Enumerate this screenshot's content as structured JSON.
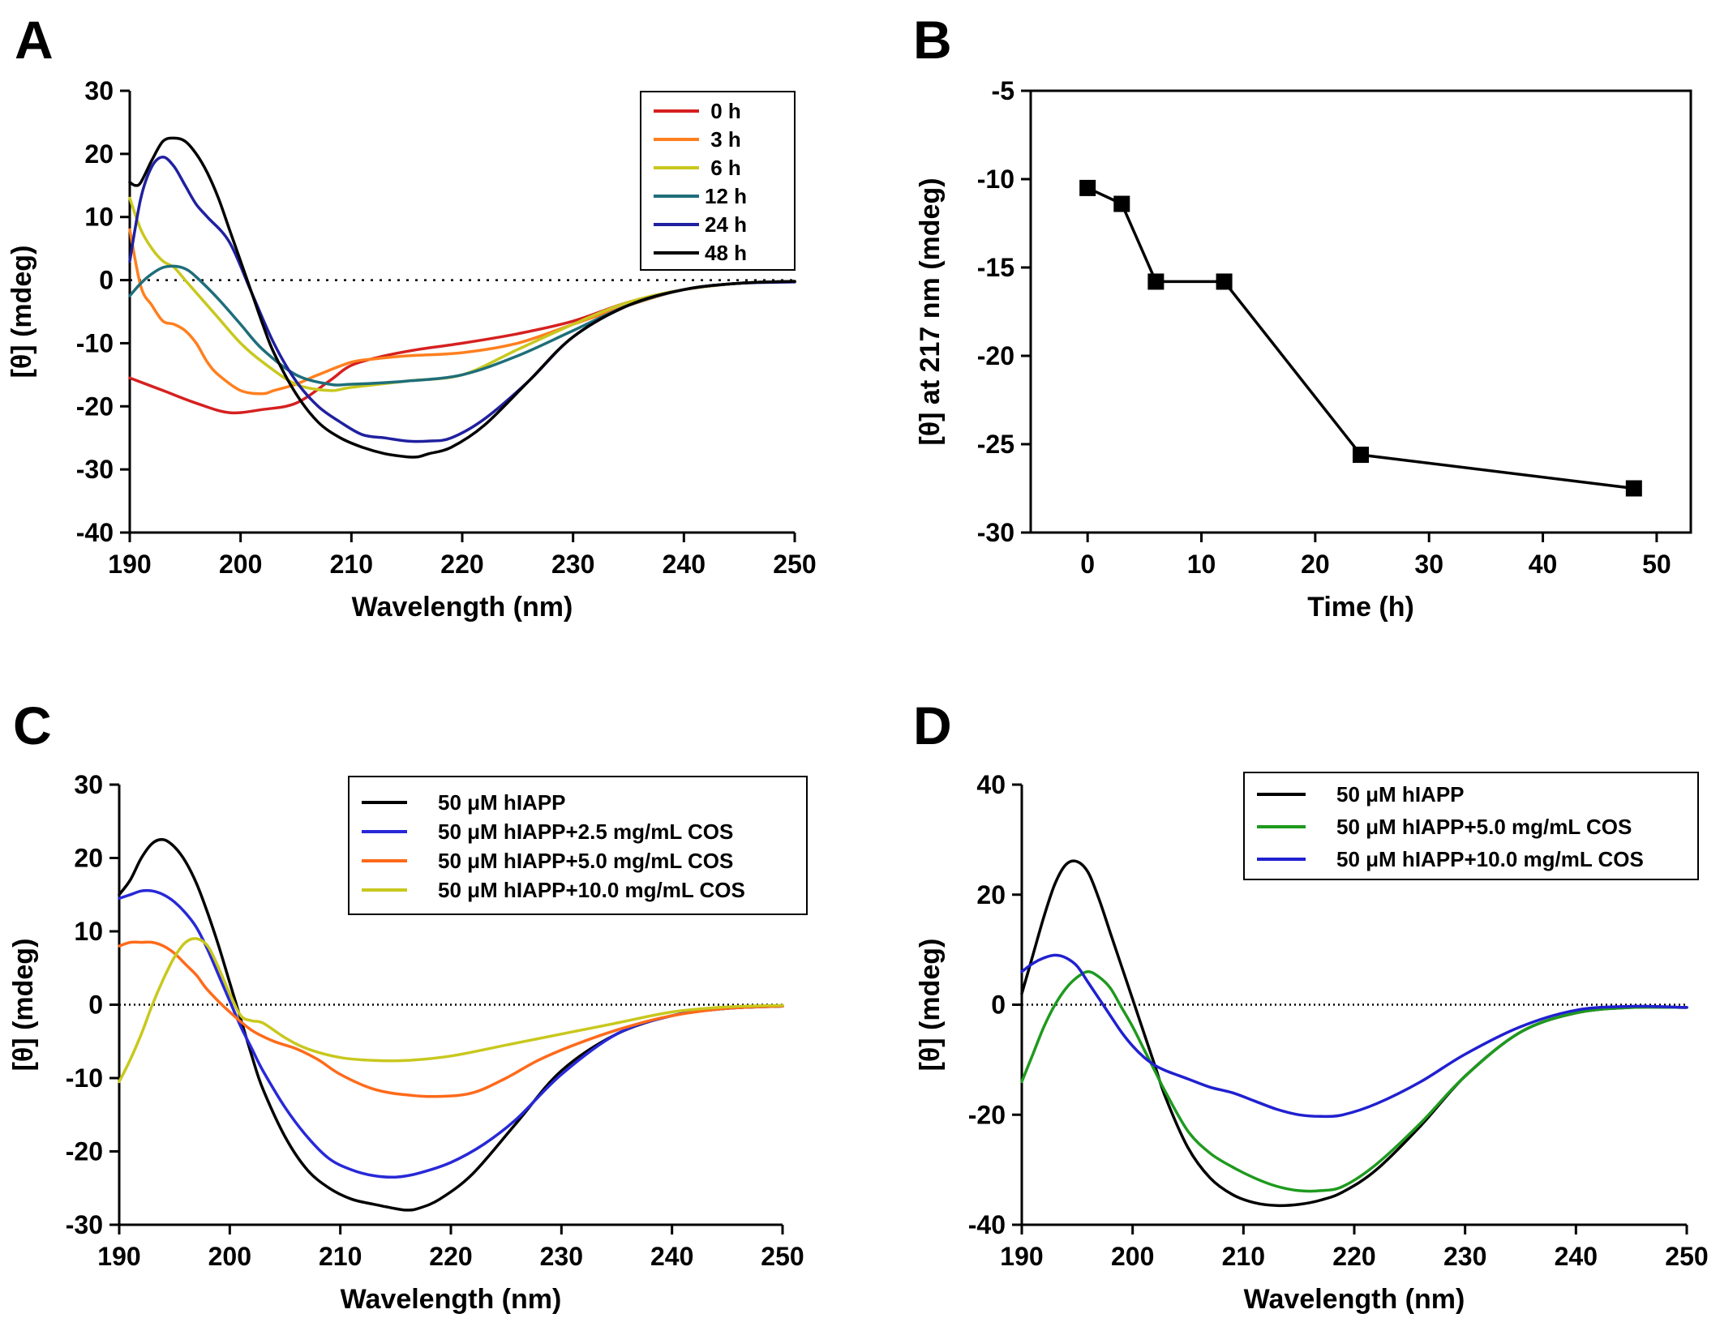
{
  "chart_data": [
    {
      "panel": "A",
      "type": "line",
      "xlabel": "Wavelength (nm)",
      "ylabel": "[θ] (mdeg)",
      "xlim": [
        190,
        250
      ],
      "ylim": [
        -40,
        30
      ],
      "xticks": [
        190,
        200,
        210,
        220,
        230,
        240,
        250
      ],
      "yticks": [
        -40,
        -30,
        -20,
        -10,
        0,
        10,
        20,
        30
      ],
      "zero_line": true,
      "legend_position": "top-right",
      "series": [
        {
          "name": "0 h",
          "color": "#d62020",
          "x": [
            190,
            193,
            196,
            199,
            202,
            205,
            208,
            210,
            213,
            216,
            220,
            225,
            230,
            235,
            240,
            245,
            250
          ],
          "y": [
            -15.5,
            -17.5,
            -19.5,
            -21,
            -20.5,
            -19.5,
            -16,
            -13.5,
            -12,
            -11,
            -10,
            -8.5,
            -6.5,
            -3.5,
            -1.5,
            -0.5,
            -0.2
          ]
        },
        {
          "name": "3 h",
          "color": "#ff7f1e",
          "x": [
            190,
            191,
            192,
            193,
            194,
            195,
            196,
            197,
            198,
            200,
            202,
            203,
            205,
            207,
            210,
            212,
            215,
            220,
            225,
            230,
            235,
            240,
            245,
            250
          ],
          "y": [
            8,
            -1,
            -4,
            -6.5,
            -7,
            -8,
            -10,
            -13,
            -15,
            -17.5,
            -18,
            -17.5,
            -16.5,
            -15,
            -13,
            -12.5,
            -12,
            -11.5,
            -10,
            -7,
            -4,
            -1.5,
            -0.5,
            -0.2
          ]
        },
        {
          "name": "6 h",
          "color": "#c8c81e",
          "x": [
            190,
            191,
            192,
            193,
            194,
            195,
            196,
            198,
            200,
            202,
            205,
            208,
            210,
            215,
            220,
            225,
            230,
            235,
            240,
            245,
            250
          ],
          "y": [
            13,
            8,
            5,
            3,
            2,
            0,
            -2,
            -6,
            -10,
            -13,
            -16.5,
            -17.5,
            -17,
            -16,
            -15,
            -11,
            -7,
            -3.5,
            -1.5,
            -0.5,
            -0.2
          ]
        },
        {
          "name": "12 h",
          "color": "#1e6e7a",
          "x": [
            190,
            191,
            192,
            193,
            194,
            195,
            196,
            198,
            200,
            202,
            205,
            208,
            210,
            215,
            220,
            225,
            230,
            235,
            240,
            245,
            250
          ],
          "y": [
            -2.5,
            -0.5,
            1,
            2,
            2.2,
            1.8,
            0.5,
            -3,
            -7,
            -11,
            -15,
            -16.5,
            -16.5,
            -16,
            -15,
            -12,
            -8,
            -4,
            -1.5,
            -0.5,
            -0.2
          ]
        },
        {
          "name": "24 h",
          "color": "#2020a0",
          "x": [
            190,
            191,
            192,
            193,
            194,
            195,
            196,
            197,
            199,
            201,
            203,
            205,
            207,
            209,
            211,
            213,
            215,
            217,
            219,
            222,
            226,
            230,
            235,
            240,
            245,
            250
          ],
          "y": [
            3,
            13,
            18,
            19.5,
            18,
            15,
            12,
            10,
            6,
            -2,
            -10,
            -16,
            -20,
            -22.5,
            -24.5,
            -25,
            -25.5,
            -25.5,
            -25,
            -22,
            -16,
            -9,
            -4,
            -1.5,
            -0.5,
            -0.3
          ]
        },
        {
          "name": "48 h",
          "color": "#000000",
          "x": [
            190,
            190.5,
            191,
            192,
            193,
            194,
            195,
            196,
            197,
            198,
            199,
            200,
            201,
            202,
            203,
            205,
            207,
            209,
            211,
            213,
            215,
            216,
            217,
            219,
            222,
            226,
            230,
            235,
            240,
            245,
            250
          ],
          "y": [
            15.5,
            15,
            15.5,
            19,
            22,
            22.5,
            22,
            20,
            17,
            13,
            8,
            3,
            -2,
            -7,
            -11.5,
            -18,
            -22.5,
            -25,
            -26.5,
            -27.5,
            -28,
            -28,
            -27.5,
            -26.5,
            -23,
            -16,
            -9,
            -4,
            -1.5,
            -0.5,
            -0.2
          ]
        }
      ]
    },
    {
      "panel": "B",
      "type": "line",
      "xlabel": "Time (h)",
      "ylabel": "[θ] at 217 nm (mdeg)",
      "xlim": [
        -5,
        53
      ],
      "ylim": [
        -30,
        -5
      ],
      "xticks": [
        0,
        10,
        20,
        30,
        40,
        50
      ],
      "yticks": [
        -30,
        -25,
        -20,
        -15,
        -10,
        -5
      ],
      "marker": "square",
      "series": [
        {
          "name": "",
          "color": "#000000",
          "x": [
            0,
            3,
            6,
            12,
            24,
            48
          ],
          "y": [
            -10.5,
            -11.4,
            -15.8,
            -15.8,
            -25.6,
            -27.5
          ]
        }
      ]
    },
    {
      "panel": "C",
      "type": "line",
      "xlabel": "Wavelength (nm)",
      "ylabel": "[θ] (mdeg)",
      "xlim": [
        190,
        250
      ],
      "ylim": [
        -30,
        30
      ],
      "xticks": [
        190,
        200,
        210,
        220,
        230,
        240,
        250
      ],
      "yticks": [
        -30,
        -20,
        -10,
        0,
        10,
        20,
        30
      ],
      "zero_line": true,
      "legend_position": "top-right",
      "series": [
        {
          "name": "50 μM hIAPP",
          "color": "#000000",
          "x": [
            190,
            191,
            192,
            193,
            194,
            195,
            196,
            197,
            198,
            199,
            200,
            201,
            202,
            203,
            205,
            207,
            209,
            211,
            213,
            215,
            216,
            217,
            219,
            222,
            226,
            230,
            235,
            240,
            245,
            250
          ],
          "y": [
            15,
            17,
            20,
            22,
            22.5,
            21.5,
            19.5,
            16.5,
            12.5,
            8,
            3,
            -2,
            -7,
            -11.5,
            -18,
            -22.5,
            -25,
            -26.5,
            -27.2,
            -27.8,
            -28,
            -27.8,
            -26.5,
            -23,
            -16,
            -9,
            -4,
            -1.5,
            -0.5,
            -0.2
          ]
        },
        {
          "name": "50 μM hIAPP+2.5 mg/mL COS",
          "color": "#2828d8",
          "x": [
            190,
            191,
            192,
            193,
            194,
            195,
            196,
            197,
            198,
            199,
            200,
            201,
            202,
            203,
            205,
            207,
            209,
            211,
            213,
            215,
            217,
            220,
            223,
            226,
            230,
            235,
            240,
            245,
            250
          ],
          "y": [
            14.5,
            15,
            15.5,
            15.5,
            15,
            14,
            12.5,
            10.5,
            7.5,
            4,
            0.5,
            -3,
            -6,
            -9,
            -14,
            -18,
            -21,
            -22.5,
            -23.3,
            -23.5,
            -23,
            -21.5,
            -19,
            -15.5,
            -9.5,
            -4,
            -1.5,
            -0.5,
            -0.2
          ]
        },
        {
          "name": "50 μM hIAPP+5.0 mg/mL COS",
          "color": "#ff6a1a",
          "x": [
            190,
            191,
            192,
            193,
            194,
            195,
            196,
            197,
            198,
            200,
            202,
            204,
            206,
            208,
            210,
            213,
            216,
            219,
            222,
            225,
            228,
            232,
            236,
            240,
            245,
            250
          ],
          "y": [
            8,
            8.5,
            8.5,
            8.5,
            8,
            7,
            5.5,
            4,
            2,
            -1,
            -3.5,
            -5,
            -6,
            -7.5,
            -9.5,
            -11.5,
            -12.3,
            -12.5,
            -12,
            -10,
            -7.5,
            -5,
            -3,
            -1.5,
            -0.5,
            -0.2
          ]
        },
        {
          "name": "50 μM hIAPP+10.0 mg/mL COS",
          "color": "#c8c81e",
          "x": [
            190,
            191,
            192,
            193,
            194,
            195,
            196,
            197,
            198,
            199,
            200,
            201,
            202,
            203,
            205,
            207,
            210,
            213,
            216,
            220,
            225,
            230,
            235,
            240,
            245,
            250
          ],
          "y": [
            -10.5,
            -7.5,
            -4,
            0,
            3.5,
            6.5,
            8.5,
            9,
            8,
            5,
            1.5,
            -1.5,
            -2.2,
            -2.5,
            -4.5,
            -6,
            -7.2,
            -7.6,
            -7.6,
            -7,
            -5.5,
            -4,
            -2.5,
            -1,
            -0.3,
            -0.1
          ]
        }
      ]
    },
    {
      "panel": "D",
      "type": "line",
      "xlabel": "Wavelength (nm)",
      "ylabel": "[θ] (mdeg)",
      "xlim": [
        190,
        250
      ],
      "ylim": [
        -40,
        40
      ],
      "xticks": [
        190,
        200,
        210,
        220,
        230,
        240,
        250
      ],
      "yticks": [
        -40,
        -20,
        0,
        20,
        40
      ],
      "zero_line": true,
      "legend_position": "top-right",
      "series": [
        {
          "name": "50 μM hIAPP",
          "color": "#000000",
          "x": [
            190,
            191,
            192,
            193,
            194,
            195,
            196,
            197,
            198,
            199,
            200,
            201,
            202,
            203,
            205,
            207,
            209,
            211,
            213,
            215,
            217,
            219,
            222,
            226,
            230,
            235,
            240,
            245,
            250
          ],
          "y": [
            2,
            9,
            16,
            22,
            25.5,
            26,
            24,
            19,
            13,
            7,
            1,
            -5,
            -11,
            -17,
            -26,
            -31.5,
            -34.5,
            -36,
            -36.5,
            -36.3,
            -35.5,
            -34,
            -30,
            -22,
            -13,
            -5,
            -1.5,
            -0.5,
            -0.5
          ]
        },
        {
          "name": "50 μM hIAPP+5.0 mg/mL COS",
          "color": "#1e9a1e",
          "x": [
            190,
            191,
            192,
            193,
            194,
            195,
            196,
            197,
            198,
            199,
            200,
            201,
            202,
            203,
            205,
            207,
            209,
            211,
            213,
            215,
            217,
            219,
            222,
            226,
            230,
            235,
            240,
            245,
            250
          ],
          "y": [
            -14,
            -9,
            -4,
            0,
            3,
            5,
            6,
            5,
            3,
            -0.5,
            -4,
            -8,
            -12,
            -16,
            -23,
            -27,
            -29.5,
            -31.5,
            -33,
            -33.8,
            -33.8,
            -33,
            -29,
            -21.5,
            -13,
            -5,
            -1.5,
            -0.5,
            -0.5
          ]
        },
        {
          "name": "50 μM hIAPP+10.0 mg/mL COS",
          "color": "#2020d0",
          "x": [
            190,
            191,
            192,
            193,
            194,
            195,
            196,
            197,
            198,
            199,
            200,
            201,
            202,
            203,
            205,
            207,
            209,
            211,
            213,
            215,
            217,
            219,
            222,
            226,
            230,
            235,
            240,
            245,
            250
          ],
          "y": [
            6,
            7.5,
            8.5,
            9,
            8.5,
            7,
            4,
            1,
            -2,
            -5,
            -7.5,
            -9.5,
            -11,
            -12,
            -13.5,
            -15,
            -16,
            -17.5,
            -19,
            -20,
            -20.3,
            -20,
            -18,
            -14,
            -9,
            -4,
            -1,
            -0.3,
            -0.5
          ]
        }
      ]
    }
  ]
}
